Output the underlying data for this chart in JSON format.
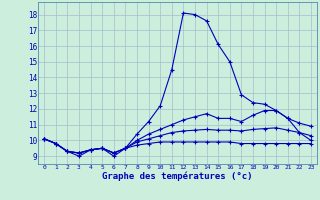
{
  "xlabel": "Graphe des températures (°c)",
  "background_color": "#cceedd",
  "grid_color": "#aabbcc",
  "line_color": "#0000bb",
  "xlim": [
    -0.5,
    23.5
  ],
  "ylim": [
    8.5,
    18.8
  ],
  "yticks": [
    9,
    10,
    11,
    12,
    13,
    14,
    15,
    16,
    17,
    18
  ],
  "xticks": [
    0,
    1,
    2,
    3,
    4,
    5,
    6,
    7,
    8,
    9,
    10,
    11,
    12,
    13,
    14,
    15,
    16,
    17,
    18,
    19,
    20,
    21,
    22,
    23
  ],
  "series": [
    [
      10.1,
      9.8,
      9.3,
      9.0,
      9.4,
      9.5,
      9.0,
      9.5,
      10.4,
      11.2,
      12.2,
      14.5,
      18.1,
      18.0,
      17.6,
      16.1,
      15.0,
      12.9,
      12.4,
      12.3,
      11.9,
      11.4,
      10.5,
      10.0
    ],
    [
      10.1,
      9.8,
      9.3,
      9.2,
      9.4,
      9.5,
      9.2,
      9.5,
      10.0,
      10.4,
      10.7,
      11.0,
      11.3,
      11.5,
      11.7,
      11.4,
      11.4,
      11.2,
      11.6,
      11.9,
      11.9,
      11.4,
      11.1,
      10.9
    ],
    [
      10.1,
      9.8,
      9.3,
      9.2,
      9.4,
      9.5,
      9.2,
      9.5,
      9.9,
      10.1,
      10.3,
      10.5,
      10.6,
      10.65,
      10.7,
      10.65,
      10.65,
      10.6,
      10.7,
      10.75,
      10.8,
      10.65,
      10.5,
      10.3
    ],
    [
      10.1,
      9.8,
      9.3,
      9.2,
      9.4,
      9.5,
      9.2,
      9.5,
      9.7,
      9.8,
      9.9,
      9.9,
      9.9,
      9.9,
      9.9,
      9.9,
      9.9,
      9.8,
      9.8,
      9.8,
      9.8,
      9.8,
      9.8,
      9.8
    ]
  ]
}
